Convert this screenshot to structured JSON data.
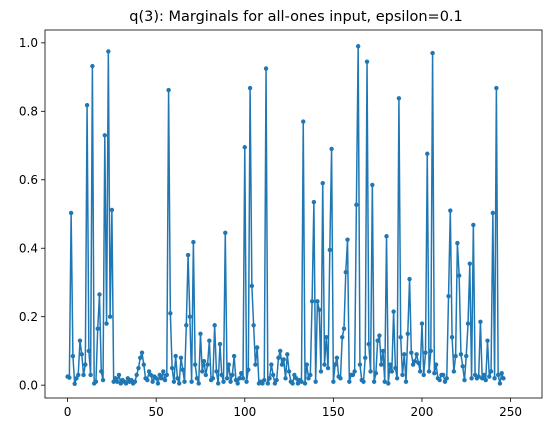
{
  "chart_data": {
    "type": "line",
    "title": "q(3): Marginals for all-ones input, epsilon=0.1",
    "xlabel": "",
    "ylabel": "",
    "xlim": [
      -12.75,
      267.75
    ],
    "ylim": [
      -0.0375,
      1.0375
    ],
    "x_ticks": [
      0,
      50,
      100,
      150,
      200,
      250
    ],
    "x_tick_labels": [
      "0",
      "50",
      "100",
      "150",
      "200",
      "250"
    ],
    "y_ticks": [
      0.0,
      0.2,
      0.4,
      0.6,
      0.8,
      1.0
    ],
    "y_tick_labels": [
      "0.0",
      "0.2",
      "0.4",
      "0.6",
      "0.8",
      "1.0"
    ],
    "grid": false,
    "legend": "none",
    "series": [
      {
        "color": "#1f77b4",
        "marker": "circle",
        "x_start": 0,
        "x_step": 1,
        "values": [
          0.025,
          0.022,
          0.503,
          0.085,
          0.004,
          0.02,
          0.03,
          0.13,
          0.09,
          0.03,
          0.06,
          0.818,
          0.1,
          0.03,
          0.932,
          0.005,
          0.01,
          0.165,
          0.265,
          0.04,
          0.015,
          0.73,
          0.18,
          0.975,
          0.2,
          0.512,
          0.01,
          0.02,
          0.01,
          0.03,
          0.005,
          0.015,
          0.01,
          0.005,
          0.02,
          0.01,
          0.015,
          0.005,
          0.01,
          0.03,
          0.05,
          0.08,
          0.095,
          0.06,
          0.02,
          0.015,
          0.04,
          0.03,
          0.01,
          0.025,
          0.02,
          0.005,
          0.03,
          0.02,
          0.04,
          0.015,
          0.03,
          0.862,
          0.21,
          0.05,
          0.01,
          0.085,
          0.02,
          0.005,
          0.08,
          0.045,
          0.01,
          0.175,
          0.38,
          0.2,
          0.01,
          0.418,
          0.06,
          0.02,
          0.005,
          0.15,
          0.04,
          0.07,
          0.03,
          0.06,
          0.13,
          0.015,
          0.02,
          0.175,
          0.04,
          0.005,
          0.12,
          0.03,
          0.01,
          0.445,
          0.02,
          0.06,
          0.01,
          0.03,
          0.085,
          0.015,
          0.005,
          0.02,
          0.035,
          0.02,
          0.695,
          0.01,
          0.045,
          0.868,
          0.29,
          0.175,
          0.06,
          0.11,
          0.005,
          0.01,
          0.005,
          0.015,
          0.925,
          0.005,
          0.02,
          0.06,
          0.03,
          0.005,
          0.015,
          0.08,
          0.1,
          0.06,
          0.075,
          0.02,
          0.09,
          0.04,
          0.01,
          0.005,
          0.03,
          0.02,
          0.005,
          0.015,
          0.01,
          0.77,
          0.005,
          0.06,
          0.02,
          0.03,
          0.245,
          0.535,
          0.01,
          0.245,
          0.22,
          0.04,
          0.59,
          0.06,
          0.14,
          0.05,
          0.395,
          0.69,
          0.01,
          0.06,
          0.08,
          0.025,
          0.02,
          0.14,
          0.165,
          0.33,
          0.425,
          0.01,
          0.03,
          0.03,
          0.04,
          0.527,
          0.99,
          0.06,
          0.015,
          0.01,
          0.08,
          0.945,
          0.12,
          0.04,
          0.585,
          0.01,
          0.035,
          0.13,
          0.145,
          0.06,
          0.1,
          0.01,
          0.435,
          0.005,
          0.06,
          0.04,
          0.215,
          0.05,
          0.02,
          0.838,
          0.14,
          0.03,
          0.09,
          0.01,
          0.15,
          0.31,
          0.095,
          0.06,
          0.07,
          0.09,
          0.065,
          0.04,
          0.18,
          0.03,
          0.095,
          0.676,
          0.04,
          0.1,
          0.97,
          0.035,
          0.06,
          0.02,
          0.015,
          0.03,
          0.03,
          0.01,
          0.02,
          0.26,
          0.51,
          0.14,
          0.04,
          0.085,
          0.415,
          0.32,
          0.09,
          0.055,
          0.015,
          0.085,
          0.18,
          0.355,
          0.02,
          0.468,
          0.03,
          0.02,
          0.025,
          0.185,
          0.02,
          0.03,
          0.015,
          0.13,
          0.025,
          0.04,
          0.503,
          0.02,
          0.868,
          0.03,
          0.005,
          0.035,
          0.02
        ]
      }
    ]
  }
}
